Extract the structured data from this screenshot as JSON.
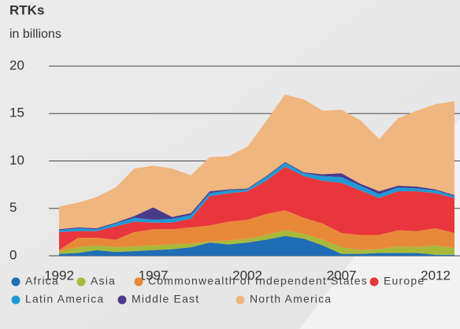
{
  "chart_data": {
    "type": "stacked_area",
    "title": "RTKs",
    "subtitle": "in billions",
    "x": [
      1992,
      1993,
      1994,
      1995,
      1996,
      1997,
      1998,
      1999,
      2000,
      2001,
      2002,
      2003,
      2004,
      2005,
      2006,
      2007,
      2008,
      2009,
      2010,
      2011,
      2012,
      2013
    ],
    "xlim": [
      1992,
      2013
    ],
    "xticks": [
      1992,
      1997,
      2002,
      2007,
      2012
    ],
    "ylim": [
      0,
      20
    ],
    "yticks": [
      0,
      5,
      10,
      15,
      20
    ],
    "grid": true,
    "legend": "bottom",
    "series": [
      {
        "name": "Africa",
        "color": "#1f6db5",
        "values": [
          0.2,
          0.3,
          0.6,
          0.4,
          0.5,
          0.6,
          0.7,
          0.9,
          1.4,
          1.2,
          1.4,
          1.7,
          2.1,
          1.8,
          1.1,
          0.2,
          0.2,
          0.3,
          0.3,
          0.3,
          0.1,
          0.1
        ]
      },
      {
        "name": "Asia",
        "color": "#a8b93a",
        "values": [
          0.2,
          0.6,
          0.5,
          0.5,
          0.5,
          0.5,
          0.5,
          0.4,
          0.1,
          0.4,
          0.4,
          0.5,
          0.6,
          0.5,
          0.6,
          0.7,
          0.4,
          0.4,
          0.7,
          0.6,
          1.0,
          0.7
        ]
      },
      {
        "name": "Commonwealth of Independent States",
        "color": "#e8893a",
        "values": [
          0.2,
          1.0,
          0.8,
          0.8,
          1.5,
          1.7,
          1.6,
          1.7,
          1.7,
          2.0,
          2.0,
          2.2,
          2.1,
          1.7,
          1.7,
          1.5,
          1.6,
          1.5,
          1.7,
          1.7,
          1.8,
          1.6
        ]
      },
      {
        "name": "Europe",
        "color": "#e8363c",
        "values": [
          1.9,
          0.7,
          0.7,
          1.4,
          1.1,
          0.7,
          0.7,
          0.9,
          3.1,
          3.0,
          3.0,
          3.5,
          4.6,
          4.4,
          4.5,
          5.3,
          4.7,
          3.9,
          4.1,
          4.2,
          3.7,
          3.7
        ]
      },
      {
        "name": "Latin America",
        "color": "#1e9ad6",
        "values": [
          0.2,
          0.3,
          0.2,
          0.3,
          0.4,
          0.3,
          0.4,
          0.4,
          0.3,
          0.3,
          0.2,
          0.4,
          0.4,
          0.3,
          0.5,
          0.6,
          0.5,
          0.4,
          0.4,
          0.3,
          0.3,
          0.2
        ]
      },
      {
        "name": "Middle East",
        "color": "#4b3a8c",
        "values": [
          0.1,
          0.1,
          0.1,
          0.1,
          0.2,
          1.3,
          0.2,
          0.2,
          0.2,
          0.1,
          0.1,
          0.1,
          0.1,
          0.1,
          0.2,
          0.4,
          0.2,
          0.3,
          0.2,
          0.2,
          0.1,
          0.1
        ]
      },
      {
        "name": "North America",
        "color": "#f0b67f",
        "values": [
          2.4,
          2.6,
          3.3,
          3.7,
          5.0,
          4.4,
          5.1,
          4.0,
          3.6,
          3.5,
          4.4,
          5.8,
          7.1,
          7.7,
          6.7,
          6.7,
          6.7,
          5.5,
          7.1,
          8.0,
          9.0,
          9.9
        ]
      }
    ]
  }
}
